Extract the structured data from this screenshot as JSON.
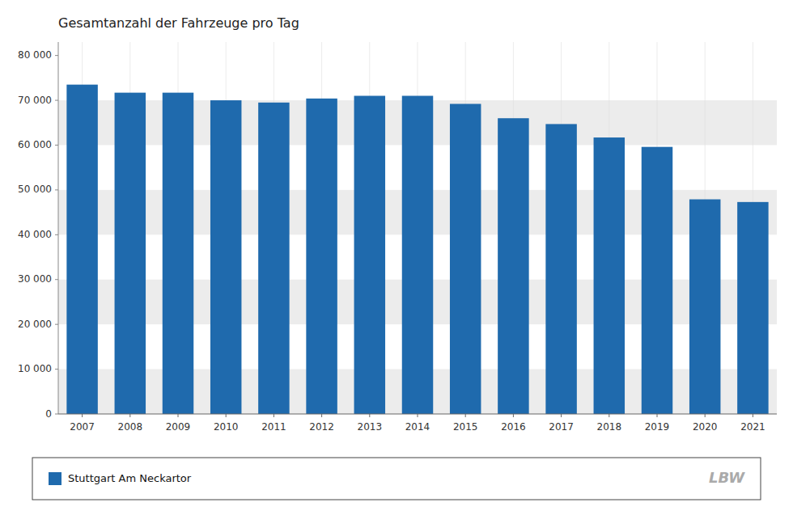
{
  "chart_data": {
    "type": "bar",
    "title": "Gesamtanzahl der Fahrzeuge  pro Tag",
    "categories": [
      "2007",
      "2008",
      "2009",
      "2010",
      "2011",
      "2012",
      "2013",
      "2014",
      "2015",
      "2016",
      "2017",
      "2018",
      "2019",
      "2020",
      "2021"
    ],
    "series": [
      {
        "name": "Stuttgart Am Neckartor",
        "color": "#1f6aad",
        "values": [
          73500,
          71700,
          71700,
          70000,
          69500,
          70400,
          71000,
          71000,
          69200,
          66000,
          64700,
          61700,
          59600,
          47900,
          47300
        ]
      }
    ],
    "ylim": [
      0,
      83000
    ],
    "yticks": [
      0,
      {
        "value": 10000,
        "label": "10 000"
      },
      {
        "value": 20000,
        "label": "20 000"
      },
      {
        "value": 30000,
        "label": "30 000"
      },
      {
        "value": 40000,
        "label": "40 000"
      },
      {
        "value": 50000,
        "label": "50 000"
      },
      {
        "value": 60000,
        "label": "60 000"
      },
      {
        "value": 70000,
        "label": "70 000"
      },
      {
        "value": 80000,
        "label": "80 000"
      }
    ],
    "grid": true,
    "legend": "bottom",
    "annotations": [
      "LBW"
    ]
  }
}
